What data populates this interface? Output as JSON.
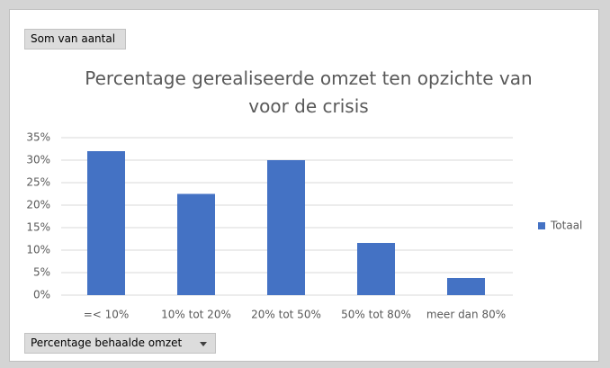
{
  "chart_data": {
    "type": "bar",
    "filter_button": "Som van aantal",
    "title": "Percentage gerealiseerde omzet ten opzichte van voor de crisis",
    "categories": [
      "=< 10%",
      "10% tot 20%",
      "20% tot 50%",
      "50% tot 80%",
      "meer dan 80%"
    ],
    "series": [
      {
        "name": "Totaal",
        "color": "#4472c4",
        "values": [
          32,
          22.5,
          30,
          11.6,
          3.8
        ]
      }
    ],
    "ylim": [
      0,
      35
    ],
    "yticks": [
      {
        "value": 0,
        "label": "0%"
      },
      {
        "value": 5,
        "label": "5%"
      },
      {
        "value": 10,
        "label": "10%"
      },
      {
        "value": 15,
        "label": "15%"
      },
      {
        "value": 20,
        "label": "20%"
      },
      {
        "value": 25,
        "label": "25%"
      },
      {
        "value": 30,
        "label": "30%"
      },
      {
        "value": 35,
        "label": "35%"
      }
    ],
    "grid": true,
    "legend": "right",
    "axis_field_button": "Percentage behaalde omzet"
  }
}
